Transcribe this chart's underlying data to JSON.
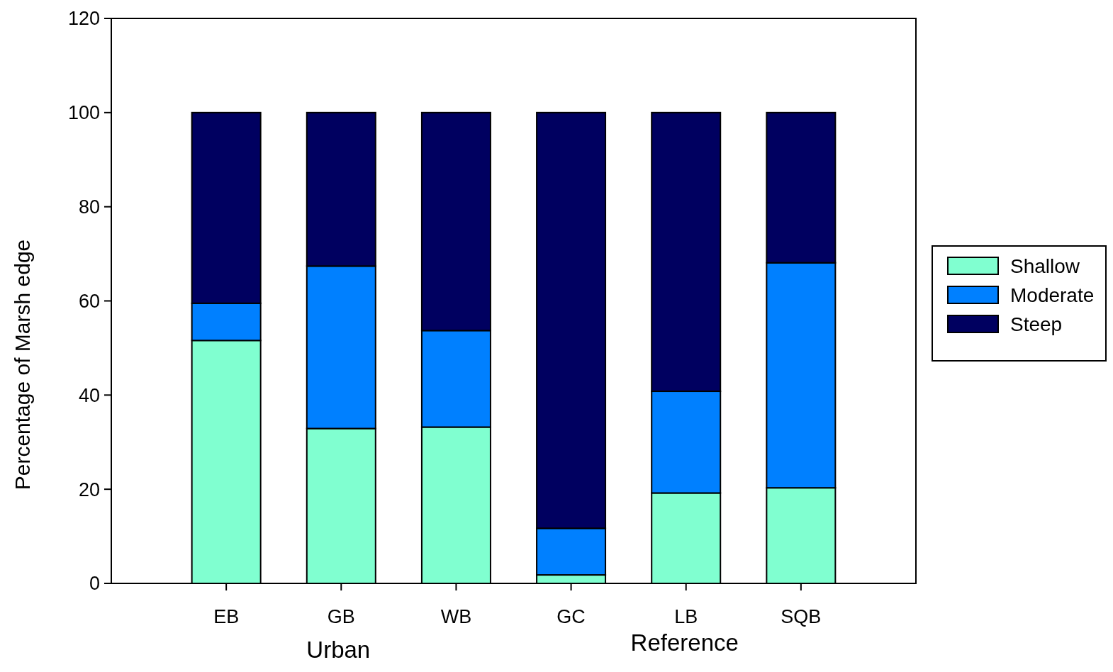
{
  "chart_data": {
    "type": "bar",
    "stacked": true,
    "ylabel": "Percentage of Marsh edge",
    "categories": [
      "EB",
      "GB",
      "WB",
      "GC",
      "LB",
      "SQB"
    ],
    "series": [
      {
        "name": "Shallow",
        "color": "#80ffd0",
        "values": [
          51.6,
          32.9,
          33.2,
          1.8,
          19.2,
          20.3
        ]
      },
      {
        "name": "Moderate",
        "color": "#0080ff",
        "values": [
          7.9,
          34.5,
          20.5,
          9.9,
          21.6,
          47.8
        ]
      },
      {
        "name": "Steep",
        "color": "#000060",
        "values": [
          40.5,
          32.6,
          46.3,
          88.3,
          59.2,
          31.9
        ]
      }
    ],
    "ylim": [
      0,
      120
    ],
    "yticks": [
      0,
      20,
      40,
      60,
      80,
      100,
      120
    ],
    "grid": false,
    "legend": "right",
    "annotations": [
      "Urban",
      "Reference"
    ]
  }
}
